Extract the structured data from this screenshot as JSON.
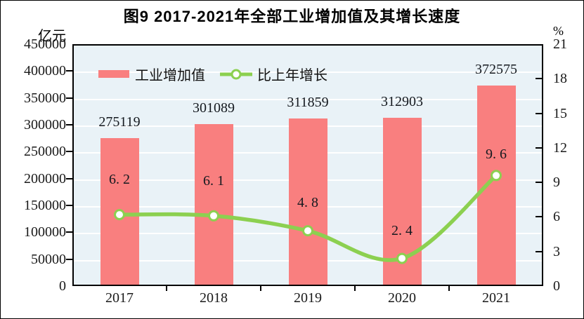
{
  "figure": {
    "title": "图9  2017-2021年全部工业增加值及其增长速度"
  },
  "colors": {
    "bar": "#F97F7F",
    "line": "#8CD050",
    "marker_fill": "#FFFFFF",
    "plot_bg": "#E9F2F7",
    "grid": "#FFFFFF",
    "frame": "#000000",
    "label_text": "#14191F"
  },
  "chart_data": {
    "type": "bar+line combo",
    "title": "图9  2017-2021年全部工业增加值及其增长速度",
    "categories": [
      "2017",
      "2018",
      "2019",
      "2020",
      "2021"
    ],
    "series": [
      {
        "name": "工业增加值",
        "type": "bar",
        "axis": "left",
        "values": [
          275119,
          301089,
          311859,
          312903,
          372575
        ],
        "data_labels": [
          "275119",
          "301089",
          "311859",
          "312903",
          "372575"
        ]
      },
      {
        "name": "比上年增长",
        "type": "line",
        "axis": "right",
        "values": [
          6.2,
          6.1,
          4.8,
          2.4,
          9.6
        ],
        "data_labels": [
          "6. 2",
          "6. 1",
          "4. 8",
          "2. 4",
          "9. 6"
        ]
      }
    ],
    "left_axis": {
      "title": "亿元",
      "min": 0,
      "max": 450000,
      "step": 50000,
      "tick_labels": [
        "450000",
        "400000",
        "350000",
        "300000",
        "250000",
        "200000",
        "150000",
        "100000",
        "50000",
        "0"
      ]
    },
    "right_axis": {
      "title": "%",
      "min": 0,
      "max": 21,
      "step": 3,
      "tick_labels": [
        "21",
        "18",
        "15",
        "12",
        "9",
        "6",
        "3",
        "0"
      ]
    },
    "grid": true,
    "legend_position": "top-inside"
  }
}
